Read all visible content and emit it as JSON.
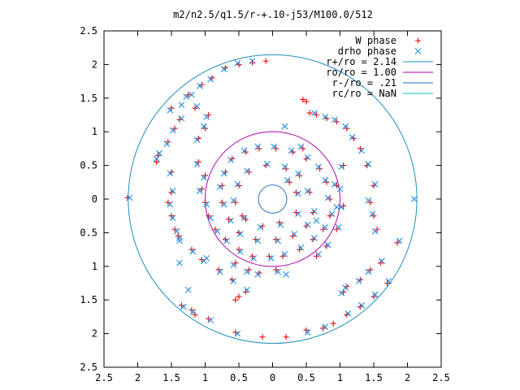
{
  "chart_data": {
    "type": "scatter",
    "title": "m2/n2.5/q1.5/r-+.10-j53/M100.0/512",
    "xlabel": "",
    "ylabel": "",
    "xlim": [
      -2.5,
      2.5
    ],
    "ylim": [
      -2.5,
      2.5
    ],
    "x_ticks": [
      -2.5,
      -2,
      -1.5,
      -1,
      -0.5,
      0,
      0.5,
      1,
      1.5,
      2,
      2.5
    ],
    "y_ticks": [
      -2.5,
      -2,
      -1.5,
      -1,
      -0.5,
      0,
      0.5,
      1,
      1.5,
      2,
      2.5
    ],
    "x_tick_labels": [
      "2.5",
      "2",
      "1.5",
      "1",
      "0.5",
      "0",
      "0.5",
      "1",
      "1.5",
      "2",
      "2.5"
    ],
    "y_tick_labels": [
      "2.5",
      "2",
      "1.5",
      "1",
      "0.5",
      "0",
      "0.5",
      "1",
      "1.5",
      "2",
      "2.5"
    ],
    "grid": false,
    "legend_position": "top-right",
    "legend": [
      {
        "label": "W phase",
        "kind": "marker",
        "marker": "plus",
        "color": "#ff0000"
      },
      {
        "label": "drho phase",
        "kind": "marker",
        "marker": "cross",
        "color": "#1e90e0"
      },
      {
        "label": "r+/ro = 2.14",
        "kind": "line",
        "color": "#1f8fbf"
      },
      {
        "label": "ro/ro = 1.00",
        "kind": "line",
        "color": "#b000b0"
      },
      {
        "label": "r-/ro = .21",
        "kind": "line",
        "color": "#1f6fbf"
      },
      {
        "label": "rc/ro = NaN",
        "kind": "line",
        "color": "#00c0c0"
      }
    ],
    "circles": [
      {
        "name": "r+/ro = 2.14",
        "radius": 2.14,
        "color": "#1f8fbf"
      },
      {
        "name": "ro/ro = 1.00",
        "radius": 1.0,
        "color": "#b000b0"
      },
      {
        "name": "r-/ro = .21",
        "radius": 0.21,
        "color": "#1f6fbf"
      }
    ],
    "series": [
      {
        "name": "W phase",
        "marker": "plus",
        "color": "#ff0000",
        "points": [
          [
            -1.38,
            1.18
          ],
          [
            -1.45,
            1.05
          ],
          [
            -1.55,
            0.85
          ],
          [
            -1.7,
            0.65
          ],
          [
            -1.72,
            0.55
          ],
          [
            -1.5,
            0.4
          ],
          [
            -1.5,
            0.1
          ],
          [
            -1.55,
            -0.05
          ],
          [
            -1.5,
            -0.25
          ],
          [
            -1.45,
            -0.45
          ],
          [
            -1.4,
            -0.55
          ],
          [
            -1.2,
            -0.75
          ],
          [
            -1.05,
            -0.9
          ],
          [
            -0.8,
            -1.05
          ],
          [
            -0.6,
            -1.2
          ],
          [
            -0.4,
            -1.38
          ],
          [
            -0.55,
            -1.5
          ],
          [
            -0.5,
            -1.45
          ],
          [
            -1.35,
            -1.58
          ],
          [
            -1.2,
            -1.65
          ],
          [
            -1.15,
            -1.72
          ],
          [
            -0.95,
            -1.78
          ],
          [
            -0.55,
            -1.98
          ],
          [
            -0.15,
            -2.05
          ],
          [
            0.2,
            -2.05
          ],
          [
            0.5,
            -1.95
          ],
          [
            0.75,
            -1.92
          ],
          [
            0.9,
            -1.85
          ],
          [
            1.1,
            -1.72
          ],
          [
            1.3,
            -1.6
          ],
          [
            1.5,
            -1.45
          ],
          [
            1.7,
            -1.25
          ],
          [
            1.85,
            -0.65
          ],
          [
            1.6,
            -0.95
          ],
          [
            1.45,
            -1.05
          ],
          [
            1.3,
            -1.2
          ],
          [
            1.1,
            -1.3
          ],
          [
            1.05,
            -1.38
          ],
          [
            1.55,
            -0.45
          ],
          [
            1.5,
            -0.25
          ],
          [
            1.45,
            -0.05
          ],
          [
            1.5,
            0.2
          ],
          [
            1.4,
            0.5
          ],
          [
            1.3,
            0.75
          ],
          [
            1.2,
            0.9
          ],
          [
            1.1,
            1.05
          ],
          [
            0.95,
            1.15
          ],
          [
            0.8,
            1.2
          ],
          [
            0.55,
            1.28
          ],
          [
            0.45,
            1.48
          ],
          [
            0.5,
            1.45
          ],
          [
            0.65,
            1.25
          ],
          [
            -0.1,
            2.05
          ],
          [
            -0.3,
            2.03
          ],
          [
            -0.5,
            2.0
          ],
          [
            -0.7,
            1.95
          ],
          [
            -0.9,
            1.8
          ],
          [
            -1.05,
            1.7
          ],
          [
            -1.25,
            1.55
          ],
          [
            -1.5,
            1.35
          ],
          [
            -2.15,
            0.02
          ],
          [
            -1.1,
            0.9
          ],
          [
            -1.0,
            1.05
          ],
          [
            -0.95,
            1.25
          ],
          [
            -1.15,
            1.35
          ],
          [
            -1.1,
            0.55
          ],
          [
            -1.0,
            0.35
          ],
          [
            -1.05,
            0.15
          ],
          [
            -1.0,
            -0.05
          ],
          [
            -0.95,
            -0.25
          ],
          [
            -0.85,
            -0.45
          ],
          [
            -0.7,
            -0.6
          ],
          [
            -0.5,
            -0.75
          ],
          [
            -0.3,
            -0.85
          ],
          [
            -0.05,
            -0.85
          ],
          [
            0.15,
            -0.85
          ],
          [
            0.4,
            -0.75
          ],
          [
            0.6,
            -0.6
          ],
          [
            0.75,
            -0.45
          ],
          [
            0.85,
            -0.25
          ],
          [
            0.85,
            0.0
          ],
          [
            0.8,
            0.25
          ],
          [
            0.7,
            0.45
          ],
          [
            0.5,
            0.6
          ],
          [
            0.3,
            0.7
          ],
          [
            0.05,
            0.75
          ],
          [
            -0.2,
            0.75
          ],
          [
            -0.4,
            0.7
          ],
          [
            -0.6,
            0.6
          ],
          [
            -0.7,
            0.4
          ],
          [
            -0.75,
            0.2
          ],
          [
            -0.75,
            -0.05
          ],
          [
            -0.65,
            -0.3
          ],
          [
            -0.5,
            -0.5
          ],
          [
            -0.25,
            -0.6
          ],
          [
            0.05,
            -0.6
          ],
          [
            0.3,
            -0.55
          ],
          [
            0.5,
            -0.4
          ],
          [
            0.6,
            -0.2
          ],
          [
            0.55,
            0.1
          ],
          [
            0.4,
            0.35
          ],
          [
            0.2,
            0.45
          ],
          [
            -0.1,
            0.5
          ],
          [
            -0.35,
            0.4
          ],
          [
            -0.5,
            0.2
          ],
          [
            -0.55,
            -0.05
          ],
          [
            -0.4,
            -0.3
          ],
          [
            -0.15,
            -0.4
          ],
          [
            0.1,
            -0.35
          ],
          [
            0.35,
            -0.2
          ],
          [
            0.35,
            0.1
          ],
          [
            0.25,
            0.25
          ],
          [
            -0.45,
            -0.25
          ],
          [
            0.95,
            0.2
          ],
          [
            1.05,
            -0.1
          ],
          [
            0.95,
            -0.45
          ],
          [
            0.8,
            -0.7
          ],
          [
            0.65,
            -0.85
          ],
          [
            1.05,
            0.5
          ],
          [
            0.45,
            0.75
          ],
          [
            -0.2,
            -1.1
          ],
          [
            -0.35,
            -1.05
          ],
          [
            -0.55,
            -0.95
          ],
          [
            0.05,
            -1.05
          ]
        ]
      },
      {
        "name": "drho phase",
        "marker": "cross",
        "color": "#1e90e0",
        "points": [
          [
            -1.35,
            1.2
          ],
          [
            -1.48,
            1.02
          ],
          [
            -1.57,
            0.82
          ],
          [
            -1.68,
            0.68
          ],
          [
            -1.72,
            0.6
          ],
          [
            -1.52,
            0.38
          ],
          [
            -1.48,
            0.12
          ],
          [
            -1.52,
            -0.08
          ],
          [
            -1.48,
            -0.28
          ],
          [
            -1.42,
            -0.48
          ],
          [
            -1.38,
            -0.58
          ],
          [
            -1.18,
            -0.78
          ],
          [
            -1.02,
            -0.92
          ],
          [
            -0.78,
            -1.08
          ],
          [
            -0.58,
            -1.22
          ],
          [
            -0.38,
            -1.35
          ],
          [
            -1.32,
            -1.6
          ],
          [
            -1.18,
            -1.68
          ],
          [
            -0.92,
            -1.8
          ],
          [
            -0.52,
            -2.0
          ],
          [
            0.52,
            -1.98
          ],
          [
            0.78,
            -1.9
          ],
          [
            1.12,
            -1.7
          ],
          [
            1.32,
            -1.58
          ],
          [
            1.52,
            -1.42
          ],
          [
            1.72,
            -1.22
          ],
          [
            1.88,
            -0.62
          ],
          [
            1.62,
            -0.92
          ],
          [
            1.42,
            -1.08
          ],
          [
            1.28,
            -1.22
          ],
          [
            1.08,
            -1.32
          ],
          [
            1.02,
            -1.4
          ],
          [
            1.52,
            -0.48
          ],
          [
            1.48,
            -0.22
          ],
          [
            1.42,
            -0.02
          ],
          [
            1.52,
            0.22
          ],
          [
            1.42,
            0.52
          ],
          [
            1.32,
            0.72
          ],
          [
            1.18,
            0.92
          ],
          [
            1.08,
            1.08
          ],
          [
            0.92,
            1.18
          ],
          [
            0.78,
            1.22
          ],
          [
            0.62,
            1.28
          ],
          [
            0.18,
            1.08
          ],
          [
            -0.3,
            2.05
          ],
          [
            -0.52,
            2.02
          ],
          [
            -0.72,
            1.93
          ],
          [
            -0.92,
            1.78
          ],
          [
            -1.08,
            1.68
          ],
          [
            -1.28,
            1.52
          ],
          [
            -1.52,
            1.32
          ],
          [
            -2.12,
            0.02
          ],
          [
            2.1,
            0.0
          ],
          [
            -1.12,
            0.88
          ],
          [
            -1.02,
            1.08
          ],
          [
            -0.98,
            1.22
          ],
          [
            -1.12,
            1.38
          ],
          [
            -1.12,
            0.52
          ],
          [
            -1.02,
            0.32
          ],
          [
            -1.08,
            0.12
          ],
          [
            -0.98,
            -0.08
          ],
          [
            -0.92,
            -0.28
          ],
          [
            -0.82,
            -0.48
          ],
          [
            -0.68,
            -0.62
          ],
          [
            -0.48,
            -0.78
          ],
          [
            -0.28,
            -0.88
          ],
          [
            -0.02,
            -0.88
          ],
          [
            0.18,
            -0.82
          ],
          [
            0.42,
            -0.72
          ],
          [
            0.62,
            -0.58
          ],
          [
            0.78,
            -0.42
          ],
          [
            0.88,
            -0.22
          ],
          [
            0.82,
            0.02
          ],
          [
            0.78,
            0.28
          ],
          [
            0.68,
            0.48
          ],
          [
            0.52,
            0.62
          ],
          [
            0.28,
            0.72
          ],
          [
            0.02,
            0.78
          ],
          [
            -0.22,
            0.78
          ],
          [
            -0.42,
            0.72
          ],
          [
            -0.62,
            0.58
          ],
          [
            -0.72,
            0.38
          ],
          [
            -0.78,
            0.18
          ],
          [
            -0.72,
            -0.08
          ],
          [
            -0.62,
            -0.32
          ],
          [
            -0.48,
            -0.52
          ],
          [
            -0.22,
            -0.62
          ],
          [
            0.08,
            -0.62
          ],
          [
            0.32,
            -0.52
          ],
          [
            0.52,
            -0.38
          ],
          [
            0.62,
            -0.18
          ],
          [
            0.52,
            0.12
          ],
          [
            0.38,
            0.38
          ],
          [
            0.18,
            0.48
          ],
          [
            -0.08,
            0.52
          ],
          [
            -0.38,
            0.42
          ],
          [
            -0.52,
            0.22
          ],
          [
            -0.58,
            -0.02
          ],
          [
            -0.42,
            -0.28
          ],
          [
            -0.18,
            -0.42
          ],
          [
            0.12,
            -0.38
          ],
          [
            0.38,
            -0.22
          ],
          [
            0.38,
            0.08
          ],
          [
            0.22,
            0.28
          ],
          [
            0.92,
            0.22
          ],
          [
            1.02,
            -0.12
          ],
          [
            0.98,
            -0.42
          ],
          [
            0.82,
            -0.68
          ],
          [
            0.68,
            -0.82
          ],
          [
            1.02,
            0.48
          ],
          [
            0.42,
            0.78
          ],
          [
            -0.22,
            -1.12
          ],
          [
            -0.38,
            -1.08
          ],
          [
            -0.58,
            -0.98
          ],
          [
            0.08,
            -1.08
          ],
          [
            0.2,
            -1.12
          ],
          [
            -1.38,
            -0.95
          ],
          [
            -1.38,
            -0.62
          ],
          [
            -0.98,
            -0.88
          ],
          [
            -1.25,
            -1.35
          ],
          [
            -1.2,
            1.55
          ],
          [
            -1.35,
            1.4
          ],
          [
            0.65,
            -0.32
          ],
          [
            0.95,
            -0.12
          ],
          [
            1.0,
            0.15
          ]
        ]
      }
    ]
  }
}
